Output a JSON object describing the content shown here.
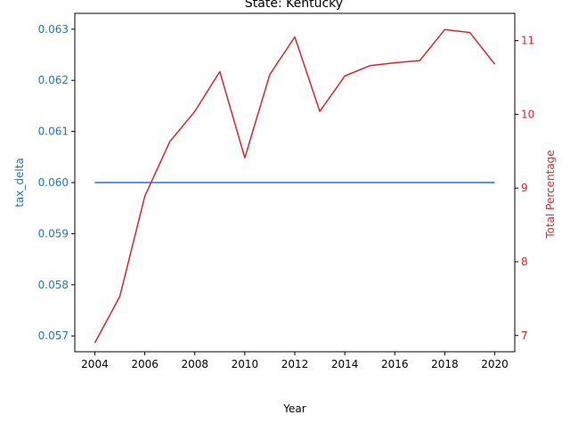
{
  "chart_data": {
    "type": "line",
    "title": "State: Kentucky",
    "xlabel": "Year",
    "ylabel_left": "tax_delta",
    "ylabel_right": "Total Percentage",
    "x": [
      2004,
      2005,
      2006,
      2007,
      2008,
      2009,
      2010,
      2011,
      2012,
      2013,
      2014,
      2015,
      2016,
      2017,
      2018,
      2019,
      2020
    ],
    "xlim": [
      2003.2,
      2020.8
    ],
    "ylim_left": [
      0.05669,
      0.06331
    ],
    "ylim_right": [
      6.78,
      11.37
    ],
    "x_ticks": [
      2004,
      2006,
      2008,
      2010,
      2012,
      2014,
      2016,
      2018,
      2020
    ],
    "y_ticks_left": [
      "0.057",
      "0.058",
      "0.059",
      "0.060",
      "0.061",
      "0.062",
      "0.063"
    ],
    "y_ticks_right": [
      "7",
      "8",
      "9",
      "10",
      "11"
    ],
    "grid": false,
    "series": [
      {
        "name": "tax_delta",
        "axis": "left",
        "color": "#1f77b4",
        "values": [
          0.06,
          0.06,
          0.06,
          0.06,
          0.06,
          0.06,
          0.06,
          0.06,
          0.06,
          0.06,
          0.06,
          0.06,
          0.06,
          0.06,
          0.06,
          0.06,
          0.06
        ]
      },
      {
        "name": "Total Percentage",
        "axis": "right",
        "color": "#d62728",
        "values": [
          6.9,
          7.53,
          8.89,
          9.63,
          10.04,
          10.58,
          9.41,
          10.54,
          11.05,
          10.04,
          10.52,
          10.66,
          10.7,
          10.73,
          11.15,
          11.11,
          10.68
        ]
      }
    ]
  }
}
